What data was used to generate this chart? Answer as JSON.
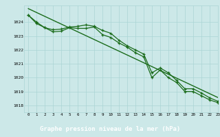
{
  "x": [
    0,
    1,
    2,
    3,
    4,
    5,
    6,
    7,
    8,
    9,
    10,
    11,
    12,
    13,
    14,
    15,
    16,
    17,
    18,
    19,
    20,
    21,
    22,
    23
  ],
  "y_line1": [
    1024.5,
    1023.9,
    1023.6,
    1023.3,
    1023.35,
    1023.6,
    1023.55,
    1023.55,
    1023.65,
    1023.1,
    1022.9,
    1022.5,
    1022.2,
    1021.8,
    1021.5,
    1020.0,
    1020.55,
    1020.0,
    1019.65,
    1019.0,
    1019.0,
    1018.7,
    1018.4,
    1018.2
  ],
  "y_line2": [
    1024.5,
    1024.0,
    1023.6,
    1023.45,
    1023.5,
    1023.65,
    1023.7,
    1023.8,
    1023.7,
    1023.4,
    1023.2,
    1022.7,
    1022.3,
    1022.0,
    1021.7,
    1020.35,
    1020.7,
    1020.35,
    1019.8,
    1019.2,
    1019.2,
    1018.9,
    1018.55,
    1018.3
  ],
  "line_color": "#1a6b1a",
  "bg_color": "#cce8e8",
  "grid_color": "#aad4d4",
  "xlabel": "Graphe pression niveau de la mer (hPa)",
  "xlabel_bg": "#2d7a2d",
  "xlabel_color": "#ffffff",
  "ylim_min": 1017.5,
  "ylim_max": 1025.2,
  "xlim_min": -0.5,
  "xlim_max": 23,
  "yticks": [
    1018,
    1019,
    1020,
    1021,
    1022,
    1023,
    1024
  ],
  "xticks": [
    0,
    1,
    2,
    3,
    4,
    5,
    6,
    7,
    8,
    9,
    10,
    11,
    12,
    13,
    14,
    15,
    16,
    17,
    18,
    19,
    20,
    21,
    22,
    23
  ]
}
